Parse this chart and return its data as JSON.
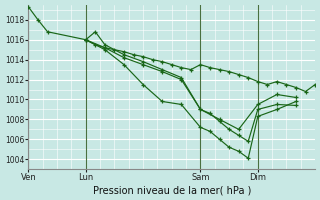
{
  "bg_color": "#c8e8e4",
  "grid_color": "#ffffff",
  "line_color": "#1a6618",
  "xlabel": "Pression niveau de la mer( hPa )",
  "ylim": [
    1003.0,
    1019.5
  ],
  "yticks": [
    1004,
    1006,
    1008,
    1010,
    1012,
    1014,
    1016,
    1018
  ],
  "xtick_labels": [
    "Ven",
    "Lun",
    "Sam",
    "Dim"
  ],
  "xtick_positions": [
    0,
    12,
    36,
    48
  ],
  "x_max": 60,
  "lines": [
    {
      "x": [
        0,
        2,
        4,
        12,
        14,
        16,
        18,
        20,
        22,
        24,
        26,
        28,
        30,
        32,
        34,
        36,
        38,
        40,
        42,
        44,
        46,
        48,
        50,
        52,
        54,
        56,
        58,
        60
      ],
      "y": [
        1019.3,
        1018.0,
        1016.8,
        1016.0,
        1015.5,
        1015.2,
        1015.0,
        1014.8,
        1014.5,
        1014.3,
        1014.0,
        1013.8,
        1013.5,
        1013.2,
        1013.0,
        1013.5,
        1013.2,
        1013.0,
        1012.8,
        1012.5,
        1012.2,
        1011.8,
        1011.5,
        1011.8,
        1011.5,
        1011.2,
        1010.8,
        1011.5
      ]
    },
    {
      "x": [
        12,
        16,
        20,
        24,
        28,
        32,
        36,
        38,
        40,
        42,
        44,
        46,
        48,
        52,
        56
      ],
      "y": [
        1016.0,
        1015.0,
        1013.5,
        1011.5,
        1009.8,
        1009.5,
        1007.2,
        1006.8,
        1006.0,
        1005.2,
        1004.8,
        1004.1,
        1008.3,
        1009.0,
        1009.8
      ]
    },
    {
      "x": [
        12,
        14,
        16,
        20,
        24,
        28,
        32,
        36,
        38,
        40,
        42,
        44,
        46,
        48,
        52,
        56
      ],
      "y": [
        1016.0,
        1016.8,
        1015.5,
        1014.5,
        1013.8,
        1013.0,
        1012.2,
        1009.0,
        1008.6,
        1007.8,
        1007.0,
        1006.4,
        1005.8,
        1009.0,
        1009.5,
        1009.4
      ]
    },
    {
      "x": [
        12,
        16,
        20,
        24,
        28,
        32,
        36,
        40,
        44,
        48,
        52,
        56
      ],
      "y": [
        1016.0,
        1015.2,
        1014.2,
        1013.5,
        1012.8,
        1012.0,
        1009.0,
        1008.0,
        1007.0,
        1009.5,
        1010.5,
        1010.2
      ]
    }
  ]
}
